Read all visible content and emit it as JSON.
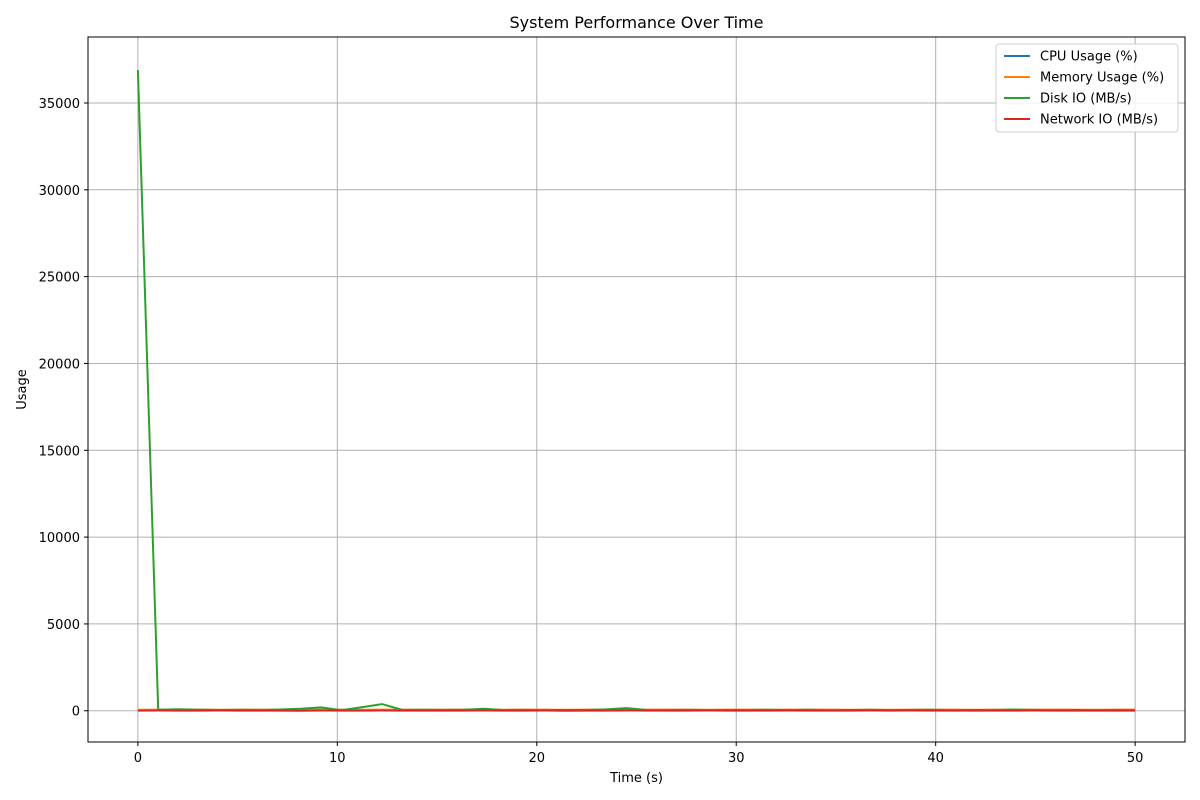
{
  "chart_data": {
    "type": "line",
    "title": "System Performance Over Time",
    "xlabel": "Time (s)",
    "ylabel": "Usage",
    "xlim": [
      -2.5,
      52.5
    ],
    "ylim": [
      -1800,
      38800
    ],
    "xticks": [
      0,
      10,
      20,
      30,
      40,
      50
    ],
    "yticks": [
      0,
      5000,
      10000,
      15000,
      20000,
      25000,
      30000,
      35000
    ],
    "grid": true,
    "legend_position": "top-right",
    "x": [
      0,
      1.02,
      2.04,
      3.06,
      4.08,
      5.1,
      6.12,
      7.14,
      8.16,
      9.18,
      10.2,
      11.22,
      12.24,
      13.27,
      14.29,
      15.31,
      16.33,
      17.35,
      18.37,
      19.39,
      20.41,
      21.43,
      22.45,
      23.47,
      24.49,
      25.51,
      26.53,
      27.55,
      28.57,
      29.59,
      30.61,
      31.63,
      32.65,
      33.67,
      34.69,
      35.71,
      36.73,
      37.76,
      38.78,
      39.8,
      40.82,
      41.84,
      42.86,
      43.88,
      44.9,
      45.92,
      46.94,
      47.96,
      48.98,
      50
    ],
    "series": [
      {
        "name": "CPU Usage (%)",
        "color": "#1f77b4",
        "values": [
          30,
          34,
          28,
          31,
          35,
          29,
          33,
          30,
          32,
          36,
          31,
          28,
          34,
          30,
          33,
          29,
          35,
          31,
          30,
          32,
          34,
          29,
          31,
          33,
          30,
          35,
          32,
          28,
          31,
          34,
          30,
          33,
          29,
          32,
          35,
          31,
          30,
          34,
          28,
          33,
          31,
          29,
          32,
          35,
          30,
          33,
          31,
          28,
          34,
          30
        ]
      },
      {
        "name": "Memory Usage (%)",
        "color": "#ff7f0e",
        "values": [
          62,
          64,
          63,
          65,
          61,
          66,
          63,
          62,
          64,
          65,
          63,
          61,
          66,
          64,
          62,
          63,
          65,
          64,
          62,
          66,
          63,
          61,
          64,
          65,
          62,
          63,
          66,
          64,
          61,
          63,
          65,
          62,
          64,
          63,
          66,
          61,
          64,
          62,
          65,
          63,
          64,
          62,
          66,
          61,
          63,
          65,
          64,
          62,
          63,
          64
        ]
      },
      {
        "name": "Disk IO (MB/s)",
        "color": "#2ca02c",
        "values": [
          36900,
          60,
          85,
          55,
          40,
          50,
          35,
          70,
          120,
          190,
          30,
          200,
          380,
          45,
          60,
          40,
          55,
          120,
          35,
          50,
          30,
          45,
          40,
          80,
          150,
          40,
          35,
          50,
          30,
          45,
          40,
          55,
          35,
          60,
          30,
          40,
          50,
          35,
          45,
          60,
          30,
          40,
          35,
          70,
          40,
          35,
          45,
          30,
          40,
          35
        ]
      },
      {
        "name": "Network IO (MB/s)",
        "color": "#d62728",
        "values": [
          8,
          12,
          6,
          10,
          14,
          7,
          9,
          11,
          5,
          13,
          8,
          10,
          12,
          6,
          9,
          11,
          7,
          14,
          8,
          10,
          12,
          5,
          9,
          11,
          13,
          7,
          10,
          8,
          12,
          6,
          9,
          11,
          14,
          7,
          10,
          8,
          12,
          6,
          13,
          9,
          11,
          7,
          10,
          8,
          12,
          6,
          9,
          11,
          7,
          10
        ]
      }
    ]
  }
}
